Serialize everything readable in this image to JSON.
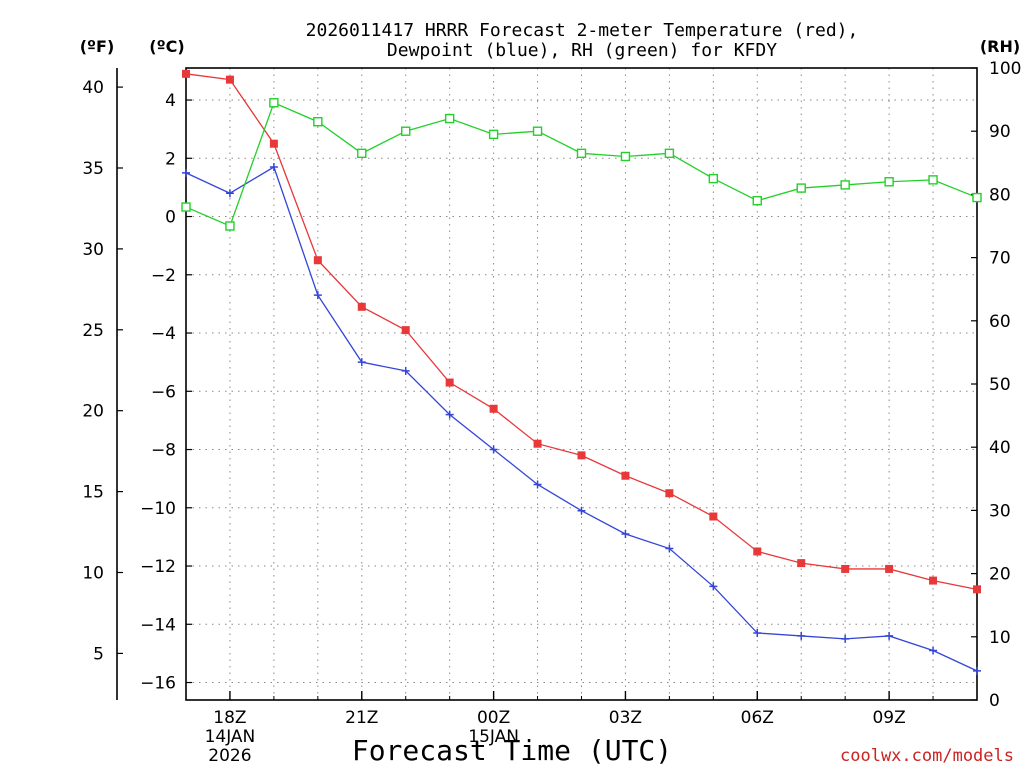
{
  "chart_data": {
    "type": "line",
    "title_line1": "2026011417 HRRR Forecast 2-meter Temperature (red),",
    "title_line2": "Dewpoint (blue), RH (green) for KFDY",
    "xlabel": "Forecast Time (UTC)",
    "credit": "coolwx.com/models",
    "unit_left_f": "(ºF)",
    "unit_left_c": "(ºC)",
    "unit_right": "(RH)",
    "x_hours_start": 17,
    "x_range": [
      0,
      18
    ],
    "x_ticks": [
      {
        "x": 1,
        "label": "18Z",
        "sub1": "14JAN",
        "sub2": "2026"
      },
      {
        "x": 4,
        "label": "21Z",
        "sub1": "",
        "sub2": ""
      },
      {
        "x": 7,
        "label": "00Z",
        "sub1": "15JAN",
        "sub2": ""
      },
      {
        "x": 10,
        "label": "03Z",
        "sub1": "",
        "sub2": ""
      },
      {
        "x": 13,
        "label": "06Z",
        "sub1": "",
        "sub2": ""
      },
      {
        "x": 16,
        "label": "09Z",
        "sub1": "",
        "sub2": ""
      }
    ],
    "celsius_axis": {
      "range": [
        -16.6,
        5.1
      ],
      "ticks": [
        4,
        2,
        0,
        -2,
        -4,
        -6,
        -8,
        -10,
        -12,
        -14,
        -16
      ]
    },
    "fahrenheit_axis": {
      "ticks": [
        40,
        35,
        30,
        25,
        20,
        15,
        10,
        5
      ]
    },
    "rh_axis": {
      "range": [
        0,
        100
      ],
      "ticks": [
        100,
        90,
        80,
        70,
        60,
        50,
        40,
        30,
        20,
        10,
        0
      ]
    },
    "series": [
      {
        "name": "Temperature",
        "color": "#e8383a",
        "axis": "celsius",
        "marker": "filled-square",
        "values": [
          4.9,
          4.7,
          2.5,
          -1.5,
          -3.1,
          -3.9,
          -5.7,
          -6.6,
          -7.8,
          -8.2,
          -8.9,
          -9.5,
          -10.3,
          -11.5,
          -11.9,
          -12.1,
          -12.1,
          -12.5,
          -12.8
        ]
      },
      {
        "name": "Dewpoint",
        "color": "#3445d8",
        "axis": "celsius",
        "marker": "plus",
        "values": [
          1.5,
          0.8,
          1.7,
          -2.7,
          -5.0,
          -5.3,
          -6.8,
          -8.0,
          -9.2,
          -10.1,
          -10.9,
          -11.4,
          -12.7,
          -14.3,
          -14.4,
          -14.5,
          -14.4,
          -14.9,
          -15.6
        ]
      },
      {
        "name": "RH",
        "color": "#22d02a",
        "axis": "rh",
        "marker": "open-square",
        "values": [
          78,
          75,
          94.5,
          91.5,
          86.5,
          90,
          92,
          89.5,
          90,
          86.5,
          86,
          86.5,
          82.5,
          79,
          81,
          81.5,
          82,
          82.3,
          79.5
        ]
      }
    ],
    "grid": true
  }
}
